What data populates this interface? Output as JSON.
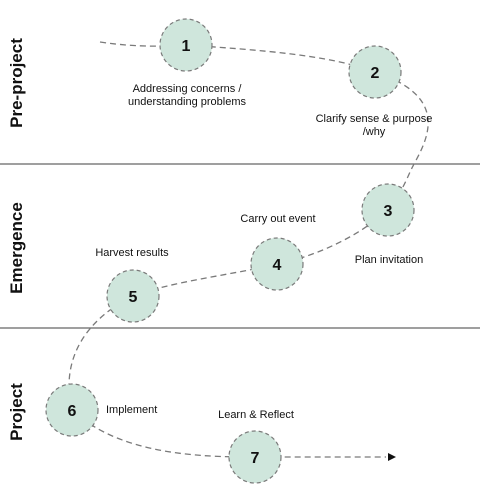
{
  "colors": {
    "node_fill": "#cfe6dc",
    "node_stroke": "#7a7a7a",
    "path_stroke": "#7a7a7a",
    "divider": "#666666",
    "text": "#111111"
  },
  "phases": [
    {
      "label": "Pre-project"
    },
    {
      "label": "Emergence"
    },
    {
      "label": "Project"
    }
  ],
  "steps": [
    {
      "number": "1",
      "caption": [
        "Addressing concerns /",
        "understanding problems"
      ]
    },
    {
      "number": "2",
      "caption": [
        "Clarify sense & purpose",
        "/why"
      ]
    },
    {
      "number": "3",
      "caption": [
        "Plan invitation"
      ]
    },
    {
      "number": "4",
      "caption": [
        "Carry out event"
      ]
    },
    {
      "number": "5",
      "caption": [
        "Harvest results"
      ]
    },
    {
      "number": "6",
      "caption": [
        "Implement"
      ]
    },
    {
      "number": "7",
      "caption": [
        "Learn & Reflect"
      ]
    }
  ]
}
